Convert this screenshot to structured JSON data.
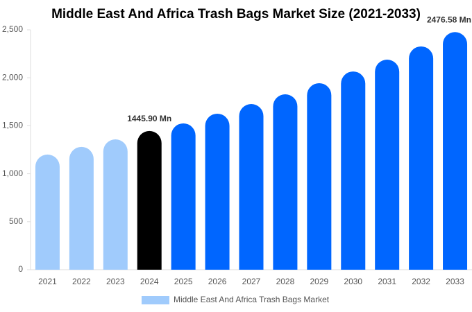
{
  "chart_data": {
    "type": "bar",
    "title": "Middle East And Africa Trash Bags Market Size (2021-2033)",
    "categories": [
      "2021",
      "2022",
      "2023",
      "2024",
      "2025",
      "2026",
      "2027",
      "2028",
      "2029",
      "2030",
      "2031",
      "2032",
      "2033"
    ],
    "series": [
      {
        "name": "Middle East And Africa Trash Bags Market",
        "color": "#a0cbfc",
        "values": [
          1200,
          1280,
          1358,
          1445.9,
          1525,
          1626,
          1727,
          1828,
          1944,
          2066,
          2189,
          2327,
          2476.58
        ],
        "value_labels": [
          null,
          null,
          null,
          "1445.90 Mn",
          null,
          null,
          null,
          null,
          null,
          null,
          null,
          null,
          "2476.58 Mn"
        ],
        "bar_colors": [
          "#a0cbfc",
          "#a0cbfc",
          "#a0cbfc",
          "#000000",
          "#0066ff",
          "#0066ff",
          "#0066ff",
          "#0066ff",
          "#0066ff",
          "#0066ff",
          "#0066ff",
          "#0066ff",
          "#0066ff"
        ]
      }
    ],
    "ylim": [
      0,
      2500
    ],
    "yticks": [
      0,
      500,
      {
        "value": 1000,
        "label": "1,000"
      },
      {
        "value": 1500,
        "label": "1,500"
      },
      {
        "value": 2000,
        "label": "2,000"
      },
      {
        "value": 2500,
        "label": "2,500"
      }
    ],
    "grid": false
  }
}
